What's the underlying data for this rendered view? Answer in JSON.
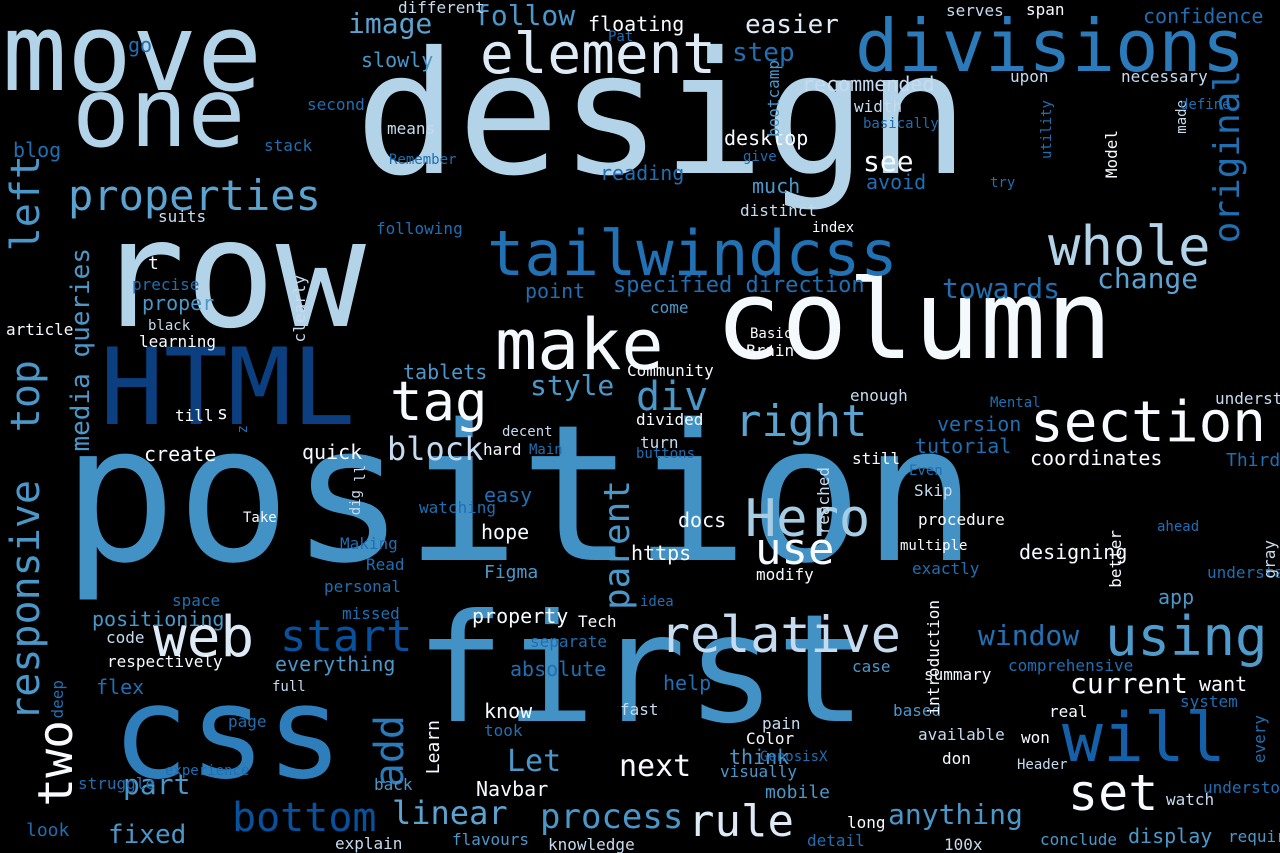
{
  "colors": {
    "background": "#000000",
    "palette": [
      "#f7fbff",
      "#deebf7",
      "#c6dbef",
      "#9ecae1",
      "#6baed6",
      "#4292c6",
      "#2171b5",
      "#08519c",
      "#08306b"
    ]
  },
  "words": [
    {
      "text": "position",
      "size": 190,
      "color": "#4292c6"
    },
    {
      "text": "design",
      "size": 170,
      "color": "#b3d3e8"
    },
    {
      "text": "row",
      "size": 150,
      "color": "#b3d3e8"
    },
    {
      "text": "first",
      "size": 150,
      "color": "#4292c6"
    },
    {
      "text": "css",
      "size": 128,
      "color": "#2f7ebc"
    },
    {
      "text": "move",
      "size": 108,
      "color": "#b3d3e8"
    },
    {
      "text": "column",
      "size": 110,
      "color": "#f4f9fe"
    },
    {
      "text": "HTML",
      "size": 106,
      "color": "#0b3f80"
    },
    {
      "text": "one",
      "size": 96,
      "color": "#b3d3e8"
    },
    {
      "text": "divisions",
      "size": 72,
      "color": "#2b7bba"
    },
    {
      "text": "make",
      "size": 70,
      "color": "#f4f9fe"
    },
    {
      "text": "tailwindcss",
      "size": 62,
      "color": "#2171b5"
    },
    {
      "text": "whole",
      "size": 54,
      "color": "#b3d3e8"
    },
    {
      "text": "element",
      "size": 56,
      "color": "#deebf7"
    },
    {
      "text": "section",
      "size": 56,
      "color": "#f7fbff"
    },
    {
      "text": "will",
      "size": 68,
      "color": "#1561a9"
    },
    {
      "text": "using",
      "size": 54,
      "color": "#4f9bcb"
    },
    {
      "text": "web",
      "size": 56,
      "color": "#deebf7"
    },
    {
      "text": "relative",
      "size": 50,
      "color": "#c6dbef"
    },
    {
      "text": "Hero",
      "size": 52,
      "color": "#a6cde3"
    },
    {
      "text": "tag",
      "size": 54,
      "color": "#f7fbff"
    },
    {
      "text": "right",
      "size": 44,
      "color": "#5ba3d0"
    },
    {
      "text": "use",
      "size": 44,
      "color": "#f7fbff"
    },
    {
      "text": "properties",
      "size": 42,
      "color": "#5ba3d0"
    },
    {
      "text": "responsive",
      "size": 40,
      "color": "#4a98c9"
    },
    {
      "text": "top",
      "size": 40,
      "color": "#4a98c9"
    },
    {
      "text": "left",
      "size": 40,
      "color": "#4a98c9"
    },
    {
      "text": "original",
      "size": 36,
      "color": "#1f6fb2"
    },
    {
      "text": "set",
      "size": 50,
      "color": "#f7fbff"
    },
    {
      "text": "start",
      "size": 44,
      "color": "#08519c"
    },
    {
      "text": "bottom",
      "size": 40,
      "color": "#08519c"
    },
    {
      "text": "two",
      "size": 48,
      "color": "#f7fbff"
    },
    {
      "text": "rule",
      "size": 44,
      "color": "#deebf7"
    },
    {
      "text": "add",
      "size": 40,
      "color": "#2b7bba"
    },
    {
      "text": "parent",
      "size": 36,
      "color": "#4a98c9"
    },
    {
      "text": "div",
      "size": 40,
      "color": "#4a98c9"
    },
    {
      "text": "process",
      "size": 34,
      "color": "#4a98c9"
    },
    {
      "text": "linear",
      "size": 32,
      "color": "#5ba3d0"
    },
    {
      "text": "media queries",
      "size": 26,
      "color": "#4a98c9"
    },
    {
      "text": "block",
      "size": 32,
      "color": "#c6dbef"
    },
    {
      "text": "window",
      "size": 28,
      "color": "#2171b5"
    },
    {
      "text": "current",
      "size": 28,
      "color": "#f7fbff"
    },
    {
      "text": "change",
      "size": 28,
      "color": "#5ba3d0"
    },
    {
      "text": "towards",
      "size": 28,
      "color": "#1f6fb2"
    },
    {
      "text": "follow",
      "size": 28,
      "color": "#4a98c9"
    },
    {
      "text": "image",
      "size": 28,
      "color": "#5ba3d0"
    },
    {
      "text": "anything",
      "size": 28,
      "color": "#4a98c9"
    },
    {
      "text": "next",
      "size": 30,
      "color": "#f7fbff"
    },
    {
      "text": "Let",
      "size": 30,
      "color": "#4a98c9"
    },
    {
      "text": "style",
      "size": 28,
      "color": "#4a98c9"
    },
    {
      "text": "part",
      "size": 28,
      "color": "#4a98c9"
    },
    {
      "text": "see",
      "size": 28,
      "color": "#f7fbff"
    },
    {
      "text": "fixed",
      "size": 26,
      "color": "#4a98c9"
    },
    {
      "text": "step",
      "size": 26,
      "color": "#1f6fb2"
    },
    {
      "text": "easier",
      "size": 26,
      "color": "#deebf7"
    },
    {
      "text": "specified direction",
      "size": 22,
      "color": "#1f6fb2"
    },
    {
      "text": "display",
      "size": 20,
      "color": "#4a98c9"
    },
    {
      "text": "floating",
      "size": 20,
      "color": "#f7fbff"
    },
    {
      "text": "confidence",
      "size": 20,
      "color": "#1f6fb2"
    },
    {
      "text": "recommended",
      "size": 20,
      "color": "#c6dbef"
    },
    {
      "text": "desktop",
      "size": 20,
      "color": "#f7fbff"
    },
    {
      "text": "much",
      "size": 20,
      "color": "#4a98c9"
    },
    {
      "text": "reading",
      "size": 20,
      "color": "#1f6fb2"
    },
    {
      "text": "avoid",
      "size": 20,
      "color": "#1f6fb2"
    },
    {
      "text": "point",
      "size": 20,
      "color": "#1f6fb2"
    },
    {
      "text": "proper",
      "size": 20,
      "color": "#4a98c9"
    },
    {
      "text": "tablets",
      "size": 20,
      "color": "#4a98c9"
    },
    {
      "text": "create",
      "size": 20,
      "color": "#f7fbff"
    },
    {
      "text": "quick",
      "size": 20,
      "color": "#f7fbff"
    },
    {
      "text": "version",
      "size": 20,
      "color": "#1f6fb2"
    },
    {
      "text": "tutorial",
      "size": 20,
      "color": "#1f6fb2"
    },
    {
      "text": "coordinates",
      "size": 20,
      "color": "#f7fbff"
    },
    {
      "text": "slowly",
      "size": 20,
      "color": "#4a98c9"
    },
    {
      "text": "blog",
      "size": 20,
      "color": "#1f6fb2"
    },
    {
      "text": "go",
      "size": 20,
      "color": "#1f6fb2"
    },
    {
      "text": "easy",
      "size": 20,
      "color": "#1f6fb2"
    },
    {
      "text": "watching",
      "size": 16,
      "color": "#1f6fb2"
    },
    {
      "text": "hope",
      "size": 20,
      "color": "#f7fbff"
    },
    {
      "text": "docs",
      "size": 20,
      "color": "#f7fbff"
    },
    {
      "text": "https",
      "size": 20,
      "color": "#f7fbff"
    },
    {
      "text": "Figma",
      "size": 18,
      "color": "#4a98c9"
    },
    {
      "text": "property",
      "size": 20,
      "color": "#f7fbff"
    },
    {
      "text": "positioning",
      "size": 20,
      "color": "#4a98c9"
    },
    {
      "text": "everything",
      "size": 20,
      "color": "#4a98c9"
    },
    {
      "text": "flex",
      "size": 20,
      "color": "#1f6fb2"
    },
    {
      "text": "absolute",
      "size": 20,
      "color": "#1f6fb2"
    },
    {
      "text": "help",
      "size": 20,
      "color": "#1f6fb2"
    },
    {
      "text": "designing",
      "size": 20,
      "color": "#f7fbff"
    },
    {
      "text": "app",
      "size": 20,
      "color": "#4a98c9"
    },
    {
      "text": "want",
      "size": 20,
      "color": "#f7fbff"
    },
    {
      "text": "mobile",
      "size": 18,
      "color": "#4a98c9"
    },
    {
      "text": "think",
      "size": 20,
      "color": "#4a98c9"
    },
    {
      "text": "know",
      "size": 20,
      "color": "#f7fbff"
    },
    {
      "text": "Navbar",
      "size": 20,
      "color": "#f7fbff"
    },
    {
      "text": "Learn",
      "size": 18,
      "color": "#f7fbff"
    },
    {
      "text": "Third",
      "size": 18,
      "color": "#1f6fb2"
    },
    {
      "text": "look",
      "size": 18,
      "color": "#1f6fb2"
    },
    {
      "text": "explain",
      "size": 16,
      "color": "#c6dbef"
    },
    {
      "text": "flavours",
      "size": 16,
      "color": "#4a98c9"
    },
    {
      "text": "knowledge",
      "size": 16,
      "color": "#c6dbef"
    },
    {
      "text": "detail",
      "size": 16,
      "color": "#1f6fb2"
    },
    {
      "text": "long",
      "size": 16,
      "color": "#f7fbff"
    },
    {
      "text": "100x",
      "size": 16,
      "color": "#c6dbef"
    },
    {
      "text": "conclude",
      "size": 16,
      "color": "#4a98c9"
    },
    {
      "text": "required",
      "size": 16,
      "color": "#4a98c9"
    },
    {
      "text": "watch",
      "size": 16,
      "color": "#c6dbef"
    },
    {
      "text": "understood",
      "size": 16,
      "color": "#1f6fb2"
    },
    {
      "text": "every",
      "size": 16,
      "color": "#1f6fb2"
    },
    {
      "text": "Header",
      "size": 14,
      "color": "#c6dbef"
    },
    {
      "text": "won",
      "size": 16,
      "color": "#f7fbff"
    },
    {
      "text": "don",
      "size": 16,
      "color": "#f7fbff"
    },
    {
      "text": "real",
      "size": 16,
      "color": "#f7fbff"
    },
    {
      "text": "system",
      "size": 16,
      "color": "#1f6fb2"
    },
    {
      "text": "available",
      "size": 16,
      "color": "#c6dbef"
    },
    {
      "text": "based",
      "size": 16,
      "color": "#4a98c9"
    },
    {
      "text": "summary",
      "size": 16,
      "color": "#f7fbff"
    },
    {
      "text": "case",
      "size": 16,
      "color": "#4a98c9"
    },
    {
      "text": "comprehensive",
      "size": 16,
      "color": "#1f6fb2"
    },
    {
      "text": "understanding",
      "size": 16,
      "color": "#1f6fb2"
    },
    {
      "text": "gray",
      "size": 16,
      "color": "#c6dbef"
    },
    {
      "text": "ahead",
      "size": 14,
      "color": "#1f6fb2"
    },
    {
      "text": "better",
      "size": 16,
      "color": "#f7fbff"
    },
    {
      "text": "multiple",
      "size": 14,
      "color": "#f7fbff"
    },
    {
      "text": "exactly",
      "size": 16,
      "color": "#1f6fb2"
    },
    {
      "text": "modify",
      "size": 16,
      "color": "#f7fbff"
    },
    {
      "text": "procedure",
      "size": 16,
      "color": "#f7fbff"
    },
    {
      "text": "Skip",
      "size": 16,
      "color": "#c6dbef"
    },
    {
      "text": "Even",
      "size": 14,
      "color": "#1f6fb2"
    },
    {
      "text": "still",
      "size": 16,
      "color": "#f7fbff"
    },
    {
      "text": "Mental",
      "size": 14,
      "color": "#1f6fb2"
    },
    {
      "text": "understand",
      "size": 16,
      "color": "#c6dbef"
    },
    {
      "text": "enough",
      "size": 16,
      "color": "#c6dbef"
    },
    {
      "text": "Community",
      "size": 16,
      "color": "#f7fbff"
    },
    {
      "text": "Basic",
      "size": 14,
      "color": "#f7fbff"
    },
    {
      "text": "Brain",
      "size": 16,
      "color": "#f7fbff"
    },
    {
      "text": "come",
      "size": 16,
      "color": "#4a98c9"
    },
    {
      "text": "index",
      "size": 14,
      "color": "#f7fbff"
    },
    {
      "text": "distinct",
      "size": 16,
      "color": "#c6dbef"
    },
    {
      "text": "give",
      "size": 14,
      "color": "#1f6fb2"
    },
    {
      "text": "try",
      "size": 14,
      "color": "#1f6fb2"
    },
    {
      "text": "Model",
      "size": 16,
      "color": "#f7fbff"
    },
    {
      "text": "made",
      "size": 14,
      "color": "#c6dbef"
    },
    {
      "text": "utility",
      "size": 14,
      "color": "#1f6fb2"
    },
    {
      "text": "basically",
      "size": 14,
      "color": "#1f6fb2"
    },
    {
      "text": "width",
      "size": 16,
      "color": "#c6dbef"
    },
    {
      "text": "define",
      "size": 14,
      "color": "#1f6fb2"
    },
    {
      "text": "upon",
      "size": 16,
      "color": "#c6dbef"
    },
    {
      "text": "necessary",
      "size": 16,
      "color": "#c6dbef"
    },
    {
      "text": "serves",
      "size": 16,
      "color": "#c6dbef"
    },
    {
      "text": "span",
      "size": 16,
      "color": "#f7fbff"
    },
    {
      "text": "bootcamp",
      "size": 16,
      "color": "#4a98c9"
    },
    {
      "text": "Pat",
      "size": 14,
      "color": "#1f6fb2"
    },
    {
      "text": "different",
      "size": 16,
      "color": "#c6dbef"
    },
    {
      "text": "second",
      "size": 16,
      "color": "#1f6fb2"
    },
    {
      "text": "stack",
      "size": 16,
      "color": "#1f6fb2"
    },
    {
      "text": "means",
      "size": 16,
      "color": "#c6dbef"
    },
    {
      "text": "Remember",
      "size": 14,
      "color": "#1f6fb2"
    },
    {
      "text": "suits",
      "size": 16,
      "color": "#c6dbef"
    },
    {
      "text": "following",
      "size": 16,
      "color": "#1f6fb2"
    },
    {
      "text": "t",
      "size": 18,
      "color": "#f7fbff"
    },
    {
      "text": "precise",
      "size": 16,
      "color": "#1f6fb2"
    },
    {
      "text": "clearly",
      "size": 16,
      "color": "#c6dbef"
    },
    {
      "text": "black",
      "size": 14,
      "color": "#c6dbef"
    },
    {
      "text": "learning",
      "size": 16,
      "color": "#f7fbff"
    },
    {
      "text": "article",
      "size": 16,
      "color": "#f7fbff"
    },
    {
      "text": "till",
      "size": 16,
      "color": "#f7fbff"
    },
    {
      "text": "s",
      "size": 18,
      "color": "#f7fbff"
    },
    {
      "text": "z",
      "size": 14,
      "color": "#1f6fb2"
    },
    {
      "text": "decent",
      "size": 14,
      "color": "#c6dbef"
    },
    {
      "text": "hard",
      "size": 16,
      "color": "#f7fbff"
    },
    {
      "text": "Main",
      "size": 14,
      "color": "#1f6fb2"
    },
    {
      "text": "divided",
      "size": 16,
      "color": "#f7fbff"
    },
    {
      "text": "turn",
      "size": 16,
      "color": "#c6dbef"
    },
    {
      "text": "buttons",
      "size": 14,
      "color": "#1f6fb2"
    },
    {
      "text": "reached",
      "size": 16,
      "color": "#c6dbef"
    },
    {
      "text": "ll",
      "size": 14,
      "color": "#c6dbef"
    },
    {
      "text": "dig",
      "size": 14,
      "color": "#c6dbef"
    },
    {
      "text": "Take",
      "size": 14,
      "color": "#f7fbff"
    },
    {
      "text": "Making",
      "size": 16,
      "color": "#1f6fb2"
    },
    {
      "text": "Read",
      "size": 16,
      "color": "#1f6fb2"
    },
    {
      "text": "personal",
      "size": 16,
      "color": "#1f6fb2"
    },
    {
      "text": "space",
      "size": 16,
      "color": "#1f6fb2"
    },
    {
      "text": "missed",
      "size": 16,
      "color": "#1f6fb2"
    },
    {
      "text": "code",
      "size": 16,
      "color": "#c6dbef"
    },
    {
      "text": "respectively",
      "size": 16,
      "color": "#f7fbff"
    },
    {
      "text": "deep",
      "size": 16,
      "color": "#1f6fb2"
    },
    {
      "text": "full",
      "size": 14,
      "color": "#c6dbef"
    },
    {
      "text": "introduction",
      "size": 16,
      "color": "#f7fbff"
    },
    {
      "text": "idea",
      "size": 14,
      "color": "#1f6fb2"
    },
    {
      "text": "Tech",
      "size": 16,
      "color": "#f7fbff"
    },
    {
      "text": "separate",
      "size": 16,
      "color": "#1f6fb2"
    },
    {
      "text": "page",
      "size": 16,
      "color": "#1f6fb2"
    },
    {
      "text": "fast",
      "size": 16,
      "color": "#c6dbef"
    },
    {
      "text": "took",
      "size": 16,
      "color": "#1f6fb2"
    },
    {
      "text": "pain",
      "size": 16,
      "color": "#c6dbef"
    },
    {
      "text": "Color",
      "size": 16,
      "color": "#f7fbff"
    },
    {
      "text": "GenosisX",
      "size": 14,
      "color": "#1f6fb2"
    },
    {
      "text": "visually",
      "size": 16,
      "color": "#4a98c9"
    },
    {
      "text": "experience",
      "size": 14,
      "color": "#1f6fb2"
    },
    {
      "text": "struggle",
      "size": 16,
      "color": "#1f6fb2"
    },
    {
      "text": "back",
      "size": 16,
      "color": "#4a98c9"
    },
    {
      "text": "usage",
      "size": 16,
      "color": "#4a98c9"
    }
  ]
}
